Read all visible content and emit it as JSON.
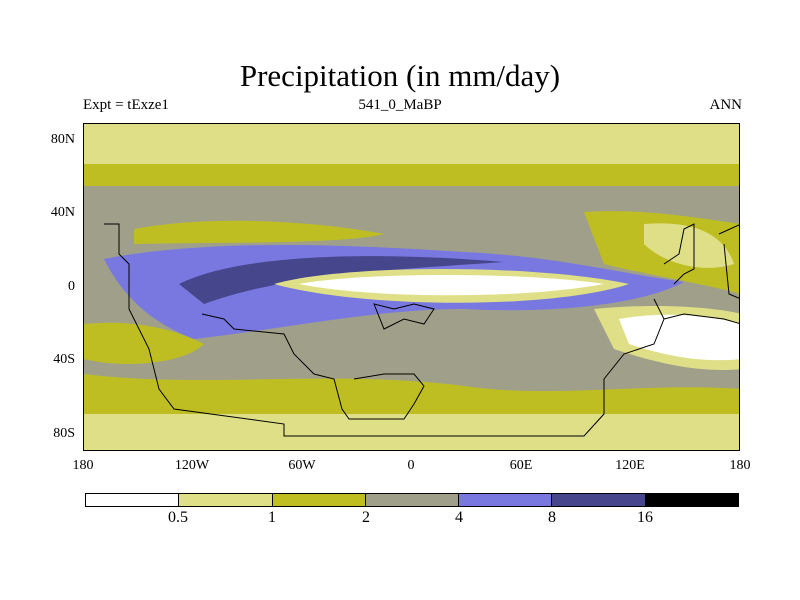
{
  "title": "Precipitation (in mm/day)",
  "subtitle": {
    "left": "Expt = tExze1",
    "center": "541_0_MaBP",
    "right": "ANN"
  },
  "axes": {
    "y_labels": [
      "80N",
      "40N",
      "0",
      "40S",
      "80S"
    ],
    "x_labels": [
      "180",
      "120W",
      "60W",
      "0",
      "60E",
      "120E",
      "180"
    ]
  },
  "legend": {
    "colors": [
      "#ffffff",
      "#dfdf88",
      "#bebe23",
      "#a0a08a",
      "#7878e0",
      "#46468c",
      "#000000"
    ],
    "labels": [
      "0.5",
      "1",
      "2",
      "4",
      "8",
      "16"
    ]
  },
  "palette": {
    "white": "#ffffff",
    "pale_yellow": "#dfdf88",
    "olive": "#bebe23",
    "gray": "#a0a08a",
    "blue": "#7878e0",
    "navy": "#46468c"
  }
}
